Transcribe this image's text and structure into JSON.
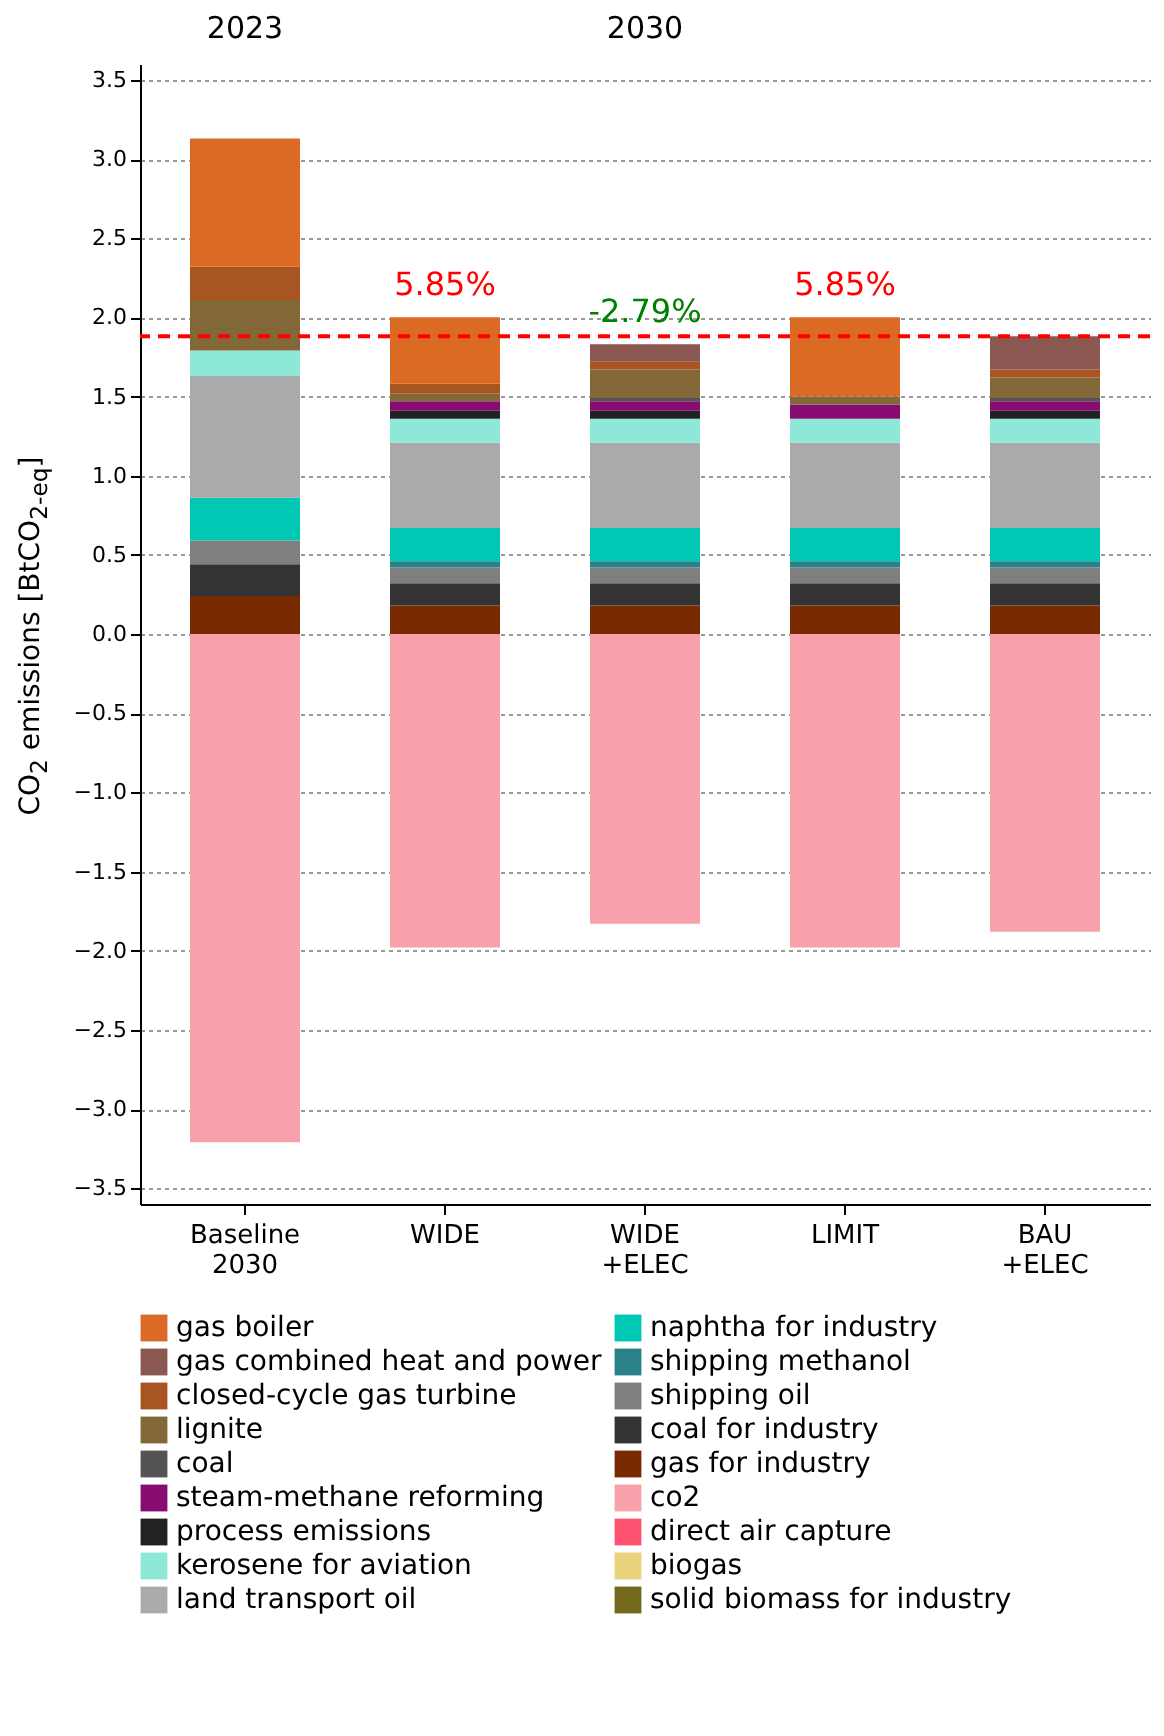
{
  "chart_data": {
    "type": "bar",
    "stacked": true,
    "ylabel": "CO$_{2}$ emissions [BtCO$_{2-eq}$]",
    "categories": [
      "Baseline\n2030",
      "WIDE",
      "WIDE\n+ELEC",
      "LIMIT",
      "BAU\n+ELEC"
    ],
    "series": [
      {
        "name": "solid biomass for industry",
        "color": "#75681f",
        "values": [
          0,
          0,
          0,
          0,
          0
        ]
      },
      {
        "name": "biogas",
        "color": "#e9d27c",
        "values": [
          0,
          0,
          0,
          0,
          0
        ]
      },
      {
        "name": "direct air capture",
        "color": "#ff5270",
        "values": [
          0,
          0,
          0,
          0,
          0
        ]
      },
      {
        "name": "co2",
        "color": "#f9a1aa",
        "values": [
          -3.21,
          -1.98,
          -1.83,
          -1.98,
          -1.88
        ]
      },
      {
        "name": "gas for industry",
        "color": "#7a2a00",
        "values": [
          0.24,
          0.18,
          0.18,
          0.18,
          0.18
        ]
      },
      {
        "name": "coal for industry",
        "color": "#333333",
        "values": [
          0.2,
          0.14,
          0.14,
          0.14,
          0.14
        ]
      },
      {
        "name": "shipping oil",
        "color": "#7f7f7f",
        "values": [
          0.15,
          0.1,
          0.1,
          0.1,
          0.1
        ]
      },
      {
        "name": "shipping methanol",
        "color": "#2a8288",
        "values": [
          0,
          0.04,
          0.04,
          0.04,
          0.04
        ]
      },
      {
        "name": "naphtha for industry",
        "color": "#00c8b4",
        "values": [
          0.27,
          0.21,
          0.21,
          0.21,
          0.21
        ]
      },
      {
        "name": "land transport oil",
        "color": "#aaaaaa",
        "values": [
          0.77,
          0.54,
          0.54,
          0.54,
          0.54
        ]
      },
      {
        "name": "kerosene for aviation",
        "color": "#8ee8d8",
        "values": [
          0.16,
          0.15,
          0.15,
          0.15,
          0.15
        ]
      },
      {
        "name": "process emissions",
        "color": "#222222",
        "values": [
          0,
          0.05,
          0.05,
          0,
          0.05
        ]
      },
      {
        "name": "steam-methane reforming",
        "color": "#870c71",
        "values": [
          0,
          0.06,
          0.06,
          0.09,
          0.06
        ]
      },
      {
        "name": "coal",
        "color": "#545454",
        "values": [
          0,
          0,
          0.02,
          0,
          0.02
        ]
      },
      {
        "name": "lignite",
        "color": "#826837",
        "values": [
          0.32,
          0.05,
          0.18,
          0.05,
          0.13
        ]
      },
      {
        "name": "closed-cycle gas turbine",
        "color": "#a85522",
        "values": [
          0.21,
          0.06,
          0.05,
          0,
          0.05
        ]
      },
      {
        "name": "gas combined heat and power",
        "color": "#8a5751",
        "values": [
          0,
          0,
          0.11,
          0,
          0.21
        ]
      },
      {
        "name": "gas boiler",
        "color": "#db6a25",
        "values": [
          0.81,
          0.42,
          0,
          0.5,
          0
        ]
      }
    ],
    "ylim": [
      -3.6,
      3.6
    ],
    "yticks": [
      {
        "value": -3.5,
        "label": "−3.5"
      },
      {
        "value": -3,
        "label": "−3.0"
      },
      {
        "value": -2.5,
        "label": "−2.5"
      },
      {
        "value": -2,
        "label": "−2.0"
      },
      {
        "value": -1.5,
        "label": "−1.5"
      },
      {
        "value": -1,
        "label": "−1.0"
      },
      {
        "value": -0.5,
        "label": "−0.5"
      },
      {
        "value": 0,
        "label": "0.0"
      },
      {
        "value": 0.5,
        "label": "0.5"
      },
      {
        "value": 1,
        "label": "1.0"
      },
      {
        "value": 1.5,
        "label": "1.5"
      },
      {
        "value": 2,
        "label": "2.0"
      },
      {
        "value": 2.5,
        "label": "2.5"
      },
      {
        "value": 3,
        "label": "3.0"
      },
      {
        "value": 3.5,
        "label": "3.5"
      }
    ],
    "grid": "y",
    "legend": "bottom",
    "ref_lines": [
      {
        "axis": "y",
        "value": 1.88,
        "color": "#ff0000",
        "line_style": "dashed"
      }
    ],
    "annotations": [
      "2023",
      "2030",
      "5.85%",
      "-2.79%",
      "5.85%"
    ]
  }
}
